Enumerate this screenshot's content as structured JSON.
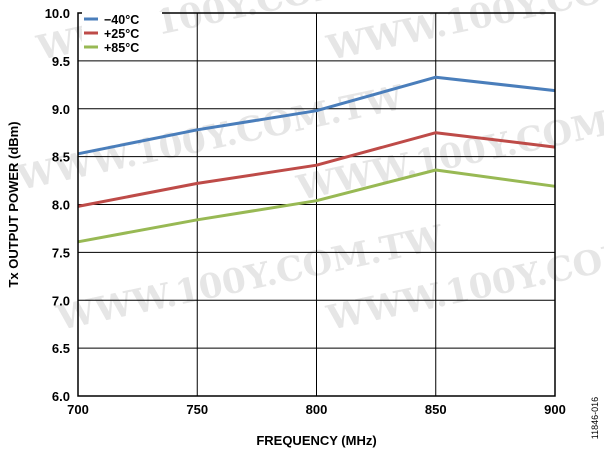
{
  "chart_data": {
    "type": "line",
    "xlabel": "FREQUENCY (MHz)",
    "ylabel": "Tx OUTPUT POWER (dBm)",
    "x": [
      700,
      750,
      800,
      850,
      900
    ],
    "x_ticks": [
      "700",
      "750",
      "800",
      "850",
      "900"
    ],
    "y_ticks": [
      "6.0",
      "6.5",
      "7.0",
      "7.5",
      "8.0",
      "8.5",
      "9.0",
      "9.5",
      "10.0"
    ],
    "xlim": [
      700,
      900
    ],
    "ylim": [
      6.0,
      10.0
    ],
    "grid": true,
    "legend_position": "top-left",
    "series": [
      {
        "name": "−40°C",
        "color": "#4a7ebb",
        "values": [
          8.53,
          8.78,
          8.98,
          9.33,
          9.19
        ]
      },
      {
        "name": "+25°C",
        "color": "#be4b48",
        "values": [
          7.98,
          8.22,
          8.41,
          8.75,
          8.6
        ]
      },
      {
        "name": "+85°C",
        "color": "#98b954",
        "values": [
          7.61,
          7.84,
          8.04,
          8.36,
          8.19
        ]
      }
    ]
  },
  "figure_id": "11846-016",
  "watermark_text": "WWW.100Y.COM.TW"
}
